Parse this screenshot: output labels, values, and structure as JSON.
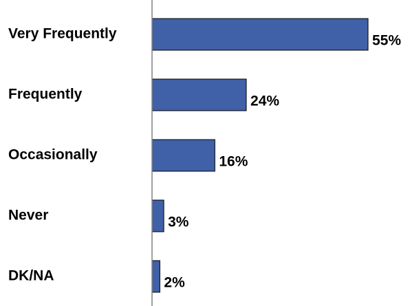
{
  "chart_data": {
    "type": "bar",
    "orientation": "horizontal",
    "categories": [
      "Very Frequently",
      "Frequently",
      "Occasionally",
      "Never",
      "DK/NA"
    ],
    "values": [
      55,
      24,
      16,
      3,
      2
    ],
    "value_labels": [
      "55%",
      "24%",
      "16%",
      "3%",
      "2%"
    ],
    "unit": "%",
    "xlim": [
      0,
      55
    ],
    "grid": false,
    "legend": "none",
    "bar_color": "#4060a8",
    "bar_edge_color": "#000000",
    "axis_color": "#808080"
  }
}
